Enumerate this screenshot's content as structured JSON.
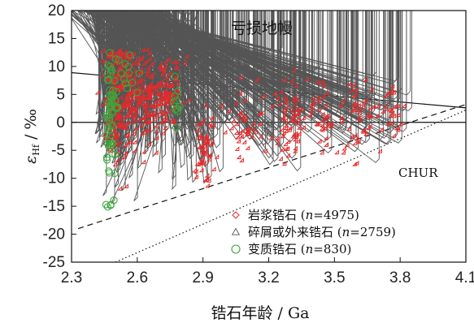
{
  "chart_data": {
    "type": "scatter",
    "title": "亏损地幔",
    "xlabel": "锆石年龄 / Ga",
    "ylabel": "εHf / ‰",
    "ylabel_main": "ε",
    "ylabel_sub": "Hf",
    "ylabel_suffix": " / ‰",
    "xlim": [
      2.3,
      4.1
    ],
    "ylim": [
      -25,
      20
    ],
    "xticks": [
      "2.3",
      "2.6",
      "2.9",
      "3.2",
      "3.5",
      "3.8",
      "4.1"
    ],
    "yticks": [
      "20",
      "15",
      "10",
      "5",
      "0",
      "-5",
      "-10",
      "-15",
      "-20",
      "-25"
    ],
    "annotation": "CHUR",
    "series": [
      {
        "name": "岩浆锆石",
        "n_label": "n=4975",
        "marker": "diamond",
        "color": "#e8292a"
      },
      {
        "name": "碎屑或外来锆石",
        "n_label": "n=2759",
        "marker": "triangle",
        "color": "#555555"
      },
      {
        "name": "变质锆石",
        "n_label": "n=830",
        "marker": "circle",
        "color": "#3aa83a"
      }
    ],
    "reference_lines": [
      {
        "label": "亏损地幔",
        "style": "solid",
        "points": [
          [
            2.3,
            8.9
          ],
          [
            4.1,
            2.6
          ]
        ]
      },
      {
        "label": "CHUR",
        "style": "solid",
        "points": [
          [
            2.3,
            0
          ],
          [
            4.1,
            0
          ]
        ]
      },
      {
        "label": "",
        "style": "dashed",
        "points": [
          [
            2.33,
            -19
          ],
          [
            4.1,
            3.2
          ]
        ]
      },
      {
        "label": "",
        "style": "dotted",
        "points": [
          [
            2.5,
            -25
          ],
          [
            4.1,
            2.2
          ]
        ]
      }
    ],
    "clusters": [
      {
        "series": 0,
        "x": 2.52,
        "y": 4,
        "sx": 0.035,
        "sy": 6.0,
        "n": 170
      },
      {
        "series": 0,
        "x": 2.62,
        "y": 5,
        "sx": 0.05,
        "sy": 4.0,
        "n": 150
      },
      {
        "series": 0,
        "x": 2.73,
        "y": 5,
        "sx": 0.04,
        "sy": 3.5,
        "n": 110
      },
      {
        "series": 0,
        "x": 2.91,
        "y": -5,
        "sx": 0.025,
        "sy": 3.0,
        "n": 55
      },
      {
        "series": 0,
        "x": 3.1,
        "y": -1,
        "sx": 0.04,
        "sy": 3.0,
        "n": 45
      },
      {
        "series": 0,
        "x": 3.3,
        "y": 0,
        "sx": 0.035,
        "sy": 3.5,
        "n": 65
      },
      {
        "series": 0,
        "x": 3.45,
        "y": 1,
        "sx": 0.04,
        "sy": 3.0,
        "n": 45
      },
      {
        "series": 0,
        "x": 3.62,
        "y": 0,
        "sx": 0.05,
        "sy": 3.5,
        "n": 45
      },
      {
        "series": 0,
        "x": 3.78,
        "y": 2,
        "sx": 0.03,
        "sy": 3.0,
        "n": 25
      },
      {
        "series": 1,
        "x": 2.5,
        "y": 0,
        "sx": 0.04,
        "sy": 6.0,
        "n": 80
      },
      {
        "series": 1,
        "x": 2.65,
        "y": 2,
        "sx": 0.09,
        "sy": 5.5,
        "n": 110
      },
      {
        "series": 1,
        "x": 2.85,
        "y": -2,
        "sx": 0.06,
        "sy": 6.0,
        "n": 55
      },
      {
        "series": 1,
        "x": 3.05,
        "y": 2,
        "sx": 0.1,
        "sy": 4.5,
        "n": 70
      },
      {
        "series": 1,
        "x": 3.3,
        "y": 1,
        "sx": 0.08,
        "sy": 4.5,
        "n": 65
      },
      {
        "series": 1,
        "x": 3.55,
        "y": 2,
        "sx": 0.09,
        "sy": 4.0,
        "n": 60
      },
      {
        "series": 1,
        "x": 3.75,
        "y": 1,
        "sx": 0.06,
        "sy": 3.5,
        "n": 30
      },
      {
        "series": 2,
        "x": 2.48,
        "y": 2,
        "sx": 0.012,
        "sy": 5.5,
        "n": 55
      },
      {
        "series": 2,
        "x": 2.55,
        "y": 9,
        "sx": 0.03,
        "sy": 2.0,
        "n": 14
      },
      {
        "series": 2,
        "x": 2.47,
        "y": -15,
        "sx": 0.01,
        "sy": 1.0,
        "n": 5
      },
      {
        "series": 2,
        "x": 2.78,
        "y": 3,
        "sx": 0.008,
        "sy": 2.0,
        "n": 10
      }
    ]
  }
}
